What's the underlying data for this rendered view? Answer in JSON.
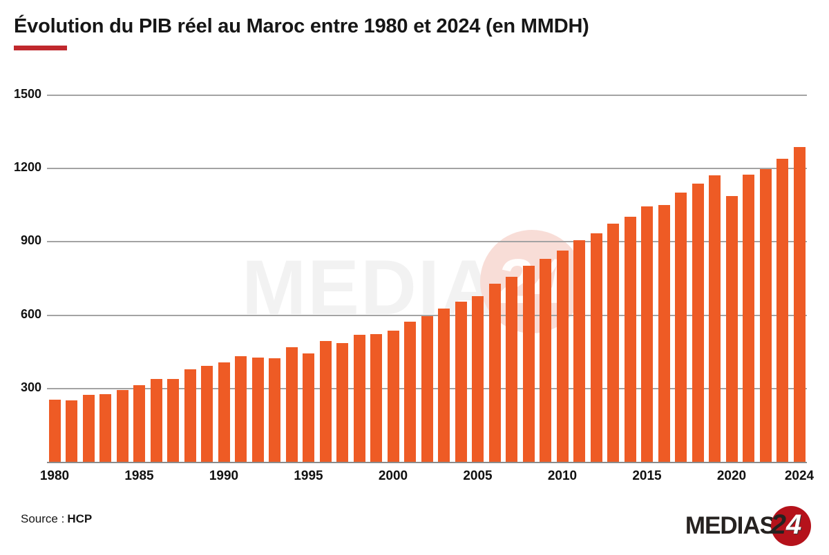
{
  "title": "Évolution du PIB réel au Maroc entre 1980 et 2024 (en MMDH)",
  "source": {
    "label": "Source :",
    "value": "HCP"
  },
  "watermark": {
    "text": "MEDIAS",
    "badge": "24"
  },
  "logo": {
    "text": "MEDIAS",
    "badge_2": "2",
    "badge_4": "4"
  },
  "colors": {
    "bar": "#ee5b25",
    "grid": "#a3a3a3",
    "title_accent": "#c0282d",
    "logo_red": "#b5121b",
    "watermark_gray": "#f2f2f2"
  },
  "chart_data": {
    "type": "bar",
    "title": "Évolution du PIB réel au Maroc entre 1980 et 2024 (en MMDH)",
    "xlabel": "",
    "ylabel": "",
    "ylim": [
      0,
      1500
    ],
    "yticks": [
      300,
      600,
      900,
      1200,
      1500
    ],
    "xtick_labels": [
      "1980",
      "1985",
      "1990",
      "1995",
      "2000",
      "2005",
      "2010",
      "2015",
      "2020",
      "2024"
    ],
    "grid": true,
    "legend": false,
    "x": [
      1980,
      1981,
      1982,
      1983,
      1984,
      1985,
      1986,
      1987,
      1988,
      1989,
      1990,
      1991,
      1992,
      1993,
      1994,
      1995,
      1996,
      1997,
      1998,
      1999,
      2000,
      2001,
      2002,
      2003,
      2004,
      2005,
      2006,
      2007,
      2008,
      2009,
      2010,
      2011,
      2012,
      2013,
      2014,
      2015,
      2016,
      2017,
      2018,
      2019,
      2020,
      2021,
      2022,
      2023,
      2024
    ],
    "values": [
      255,
      251,
      274,
      278,
      295,
      313,
      340,
      338,
      379,
      392,
      407,
      432,
      428,
      424,
      468,
      444,
      493,
      486,
      520,
      524,
      536,
      573,
      596,
      628,
      656,
      679,
      730,
      758,
      803,
      831,
      864,
      906,
      934,
      974,
      1002,
      1044,
      1051,
      1102,
      1139,
      1172,
      1087,
      1176,
      1199,
      1241,
      1287
    ],
    "source": "HCP"
  }
}
